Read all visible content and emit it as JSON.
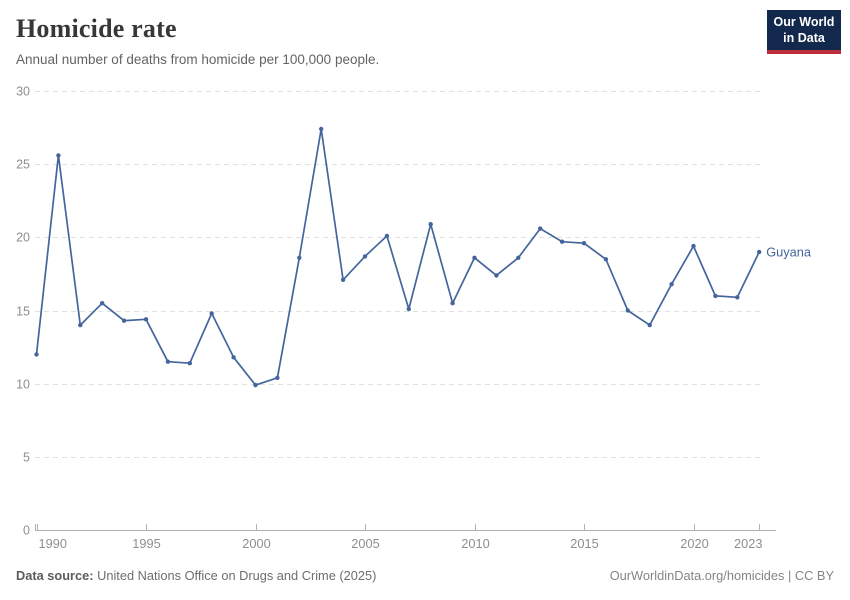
{
  "header": {
    "title": "Homicide rate",
    "subtitle": "Annual number of deaths from homicide per 100,000 people.",
    "logo": {
      "line1": "Our World",
      "line2": "in Data"
    }
  },
  "chart_data": {
    "type": "line",
    "title": "Homicide rate",
    "subtitle": "Annual number of deaths from homicide per 100,000 people.",
    "xlabel": "",
    "ylabel": "",
    "xlim": [
      1990,
      2023
    ],
    "ylim": [
      0,
      30
    ],
    "x_ticks": [
      1990,
      1995,
      2000,
      2005,
      2010,
      2015,
      2020,
      2023
    ],
    "y_ticks": [
      0,
      5,
      10,
      15,
      20,
      25,
      30
    ],
    "grid": "horizontal-dashed",
    "legend_position": "end-of-line-label",
    "x": [
      1990,
      1991,
      1992,
      1993,
      1994,
      1995,
      1996,
      1997,
      1998,
      1999,
      2000,
      2001,
      2002,
      2003,
      2004,
      2005,
      2006,
      2007,
      2008,
      2009,
      2010,
      2011,
      2012,
      2013,
      2014,
      2015,
      2016,
      2017,
      2018,
      2019,
      2020,
      2021,
      2022,
      2023
    ],
    "series": [
      {
        "name": "Guyana",
        "color": "#44659C",
        "values": [
          12.0,
          25.6,
          14.0,
          15.5,
          14.3,
          14.4,
          11.5,
          11.4,
          14.8,
          11.8,
          9.9,
          10.4,
          18.6,
          27.4,
          17.1,
          18.7,
          20.1,
          15.1,
          20.9,
          15.5,
          18.6,
          17.4,
          18.6,
          20.6,
          19.7,
          19.6,
          18.5,
          15.0,
          14.0,
          16.8,
          19.4,
          16.0,
          15.9,
          19.0
        ]
      }
    ]
  },
  "footer": {
    "datasource_label": "Data source:",
    "datasource_text": " United Nations Office on Drugs and Crime (2025)",
    "credit": "OurWorldinData.org/homicides | CC BY"
  },
  "colors": {
    "line": "#44659C",
    "grid": "#e0e0e0",
    "axis": "#b0b0b0",
    "tick_label": "#8f8f8f",
    "title": "#373737",
    "subtitle": "#636363",
    "logo_bg": "#12294d",
    "logo_red": "#b92d3c"
  }
}
